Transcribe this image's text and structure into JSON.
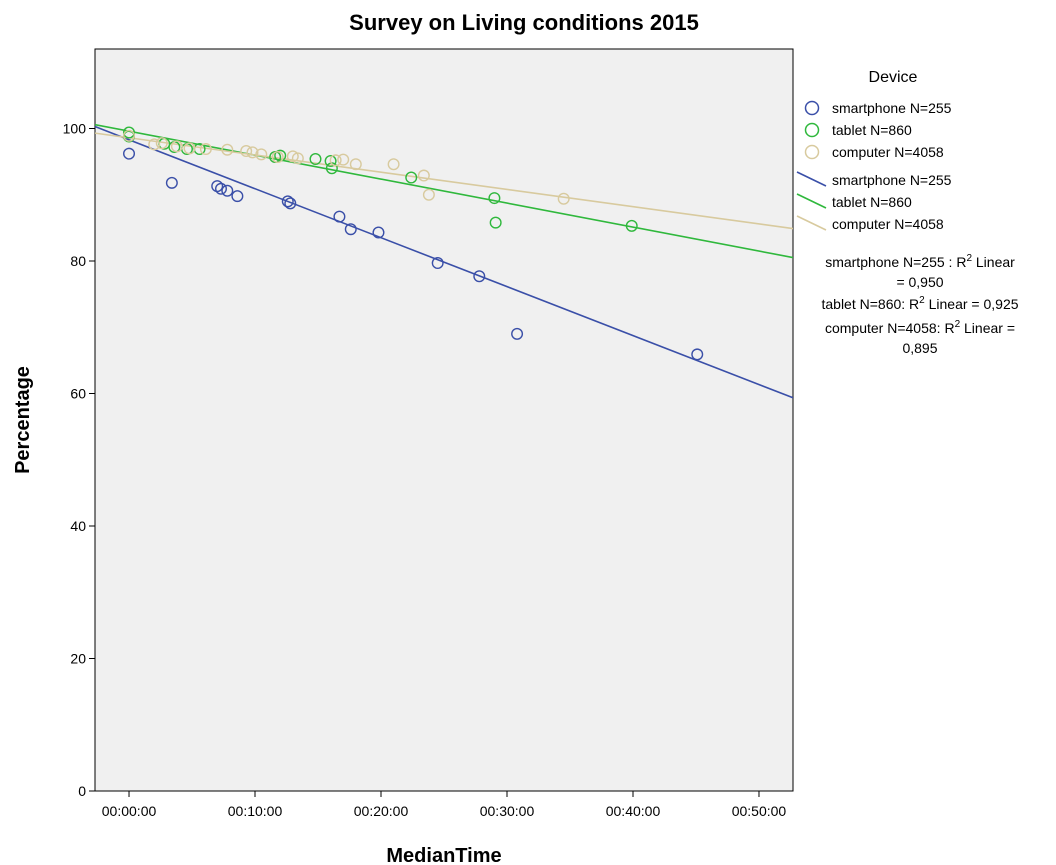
{
  "chart_data": {
    "type": "scatter",
    "title": "Survey on Living conditions 2015",
    "xlabel": "MedianTime",
    "ylabel": "Percentage",
    "x_unit": "minutes",
    "xlim": [
      -2.7,
      52.7
    ],
    "ylim": [
      0,
      112
    ],
    "x_ticks": [
      {
        "value": 0,
        "label": "00:00:00"
      },
      {
        "value": 10,
        "label": "00:10:00"
      },
      {
        "value": 20,
        "label": "00:20:00"
      },
      {
        "value": 30,
        "label": "00:30:00"
      },
      {
        "value": 40,
        "label": "00:40:00"
      },
      {
        "value": 50,
        "label": "00:50:00"
      }
    ],
    "y_ticks": [
      {
        "value": 0,
        "label": "0"
      },
      {
        "value": 20,
        "label": "20"
      },
      {
        "value": 40,
        "label": "40"
      },
      {
        "value": 60,
        "label": "60"
      },
      {
        "value": 80,
        "label": "80"
      },
      {
        "value": 100,
        "label": "100"
      }
    ],
    "grid": false,
    "legend": {
      "title": "Device",
      "placement": "right",
      "marker_labels": [
        "smartphone N=255",
        "tablet N=860",
        "computer N=4058"
      ],
      "line_labels": [
        "smartphone N=255",
        "tablet N=860",
        "computer N=4058"
      ]
    },
    "annotations": [
      {
        "lines": [
          "smartphone N=255 : R2 Linear",
          "= 0,950"
        ]
      },
      {
        "lines": [
          "tablet N=860: R2 Linear = 0,925"
        ]
      },
      {
        "lines": [
          "computer N=4058: R2 Linear =",
          "0,895"
        ]
      }
    ],
    "series": [
      {
        "name": "smartphone N=255",
        "color": "#3a4fa8",
        "points": [
          [
            0.0,
            96.2
          ],
          [
            3.4,
            91.8
          ],
          [
            7.0,
            91.3
          ],
          [
            7.3,
            90.9
          ],
          [
            7.8,
            90.6
          ],
          [
            8.6,
            89.8
          ],
          [
            12.6,
            89.0
          ],
          [
            12.8,
            88.7
          ],
          [
            16.7,
            86.7
          ],
          [
            17.6,
            84.8
          ],
          [
            19.8,
            84.3
          ],
          [
            24.5,
            79.7
          ],
          [
            27.8,
            77.7
          ],
          [
            30.8,
            69.0
          ],
          [
            45.1,
            65.9
          ]
        ],
        "fit": {
          "intercept": 98.3,
          "slope": -0.739
        }
      },
      {
        "name": "tablet N=860",
        "color": "#2fb83c",
        "points": [
          [
            0.0,
            99.4
          ],
          [
            0.0,
            98.8
          ],
          [
            2.8,
            97.7
          ],
          [
            3.6,
            97.2
          ],
          [
            4.6,
            96.9
          ],
          [
            5.6,
            96.9
          ],
          [
            11.6,
            95.7
          ],
          [
            12.0,
            95.9
          ],
          [
            14.8,
            95.4
          ],
          [
            16.0,
            95.1
          ],
          [
            16.1,
            94.0
          ],
          [
            22.4,
            92.6
          ],
          [
            29.0,
            89.5
          ],
          [
            29.1,
            85.8
          ],
          [
            39.9,
            85.3
          ]
        ],
        "fit": {
          "intercept": 99.6,
          "slope": -0.362
        }
      },
      {
        "name": "computer N=4058",
        "color": "#d8ca9e",
        "points": [
          [
            0.0,
            98.9
          ],
          [
            2.0,
            97.6
          ],
          [
            2.6,
            97.8
          ],
          [
            3.8,
            97.3
          ],
          [
            4.8,
            97.0
          ],
          [
            6.1,
            96.9
          ],
          [
            7.8,
            96.8
          ],
          [
            9.3,
            96.6
          ],
          [
            9.8,
            96.4
          ],
          [
            10.5,
            96.1
          ],
          [
            11.8,
            95.7
          ],
          [
            13.0,
            95.8
          ],
          [
            13.4,
            95.5
          ],
          [
            16.4,
            95.2
          ],
          [
            17.0,
            95.3
          ],
          [
            18.0,
            94.6
          ],
          [
            21.0,
            94.6
          ],
          [
            23.4,
            92.9
          ],
          [
            23.8,
            90.0
          ],
          [
            34.5,
            89.4
          ]
        ],
        "fit": {
          "intercept": 98.6,
          "slope": -0.26
        }
      }
    ]
  }
}
